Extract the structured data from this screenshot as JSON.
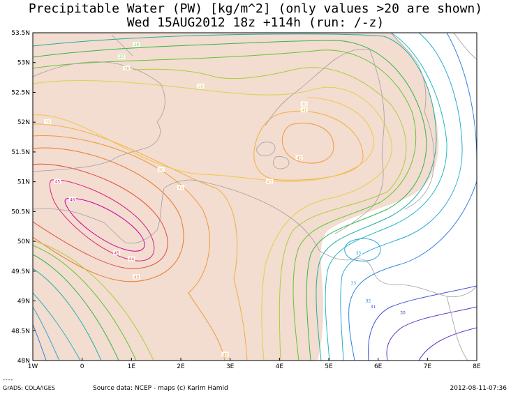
{
  "title": {
    "line1": "Precipitable Water (PW) [kg/m^2] (only values >20 are shown)",
    "line2": "Wed 15AUG2012 18z  +114h (run: /-z)"
  },
  "axes": {
    "lat_labels": [
      "53.5N",
      "53N",
      "52.5N",
      "52N",
      "51.5N",
      "51N",
      "50.5N",
      "50N",
      "49.5N",
      "49N",
      "48.5N",
      "48N"
    ],
    "lon_labels": [
      "1W",
      "0",
      "1E",
      "2E",
      "3E",
      "4E",
      "5E",
      "6E",
      "7E",
      "8E"
    ],
    "lat_range": [
      48,
      53.5
    ],
    "lon_range": [
      -1,
      8
    ]
  },
  "contour_labels": [
    {
      "text": "38",
      "lon": 1.1,
      "lat": 53.3
    },
    {
      "text": "37",
      "lon": 0.8,
      "lat": 53.1
    },
    {
      "text": "38",
      "lon": 0.9,
      "lat": 52.9
    },
    {
      "text": "39",
      "lon": 2.4,
      "lat": 52.6
    },
    {
      "text": "39",
      "lon": -0.7,
      "lat": 52.0
    },
    {
      "text": "40",
      "lon": 1.6,
      "lat": 51.2
    },
    {
      "text": "41",
      "lon": 2.0,
      "lat": 50.9
    },
    {
      "text": "41",
      "lon": 3.8,
      "lat": 51.0
    },
    {
      "text": "45",
      "lon": -0.5,
      "lat": 51.0
    },
    {
      "text": "46",
      "lon": -0.2,
      "lat": 50.7
    },
    {
      "text": "45",
      "lon": 0.7,
      "lat": 49.8
    },
    {
      "text": "44",
      "lon": 1.0,
      "lat": 49.7
    },
    {
      "text": "43",
      "lon": 1.1,
      "lat": 49.4
    },
    {
      "text": "40",
      "lon": 4.5,
      "lat": 52.3
    },
    {
      "text": "41",
      "lon": 4.5,
      "lat": 52.2
    },
    {
      "text": "42",
      "lon": 4.4,
      "lat": 51.4
    },
    {
      "text": "42",
      "lon": 2.9,
      "lat": 48.1
    },
    {
      "text": "33",
      "lon": 5.6,
      "lat": 49.8
    },
    {
      "text": "33",
      "lon": 5.5,
      "lat": 49.3
    },
    {
      "text": "32",
      "lon": 5.8,
      "lat": 49.0
    },
    {
      "text": "31",
      "lon": 5.9,
      "lat": 48.9
    },
    {
      "text": "30",
      "lon": 6.5,
      "lat": 48.8
    }
  ],
  "colors": {
    "fill": "#f3dcd0",
    "border": "#a0a0a0",
    "c46": "#cc00a0",
    "c45": "#dd2277",
    "c44": "#e64c3c",
    "c43": "#e87a2a",
    "c42": "#ee9a38",
    "c41": "#f0b040",
    "c40": "#f0c84a",
    "c39": "#dcd24a",
    "c38": "#a8d038",
    "c37": "#60c830",
    "c36": "#30b84a",
    "c35": "#20b0a0",
    "c34": "#20b8c0",
    "c33": "#2aa8d8",
    "c32": "#3080e0",
    "c31": "#4050d8",
    "c30": "#6030c8"
  },
  "footer": {
    "dash": "----",
    "left": "GrADS: COLA/IGES",
    "center": "Source data: NCEP - maps (c) Karim Hamid",
    "right": "2012-08-11-07:36"
  }
}
